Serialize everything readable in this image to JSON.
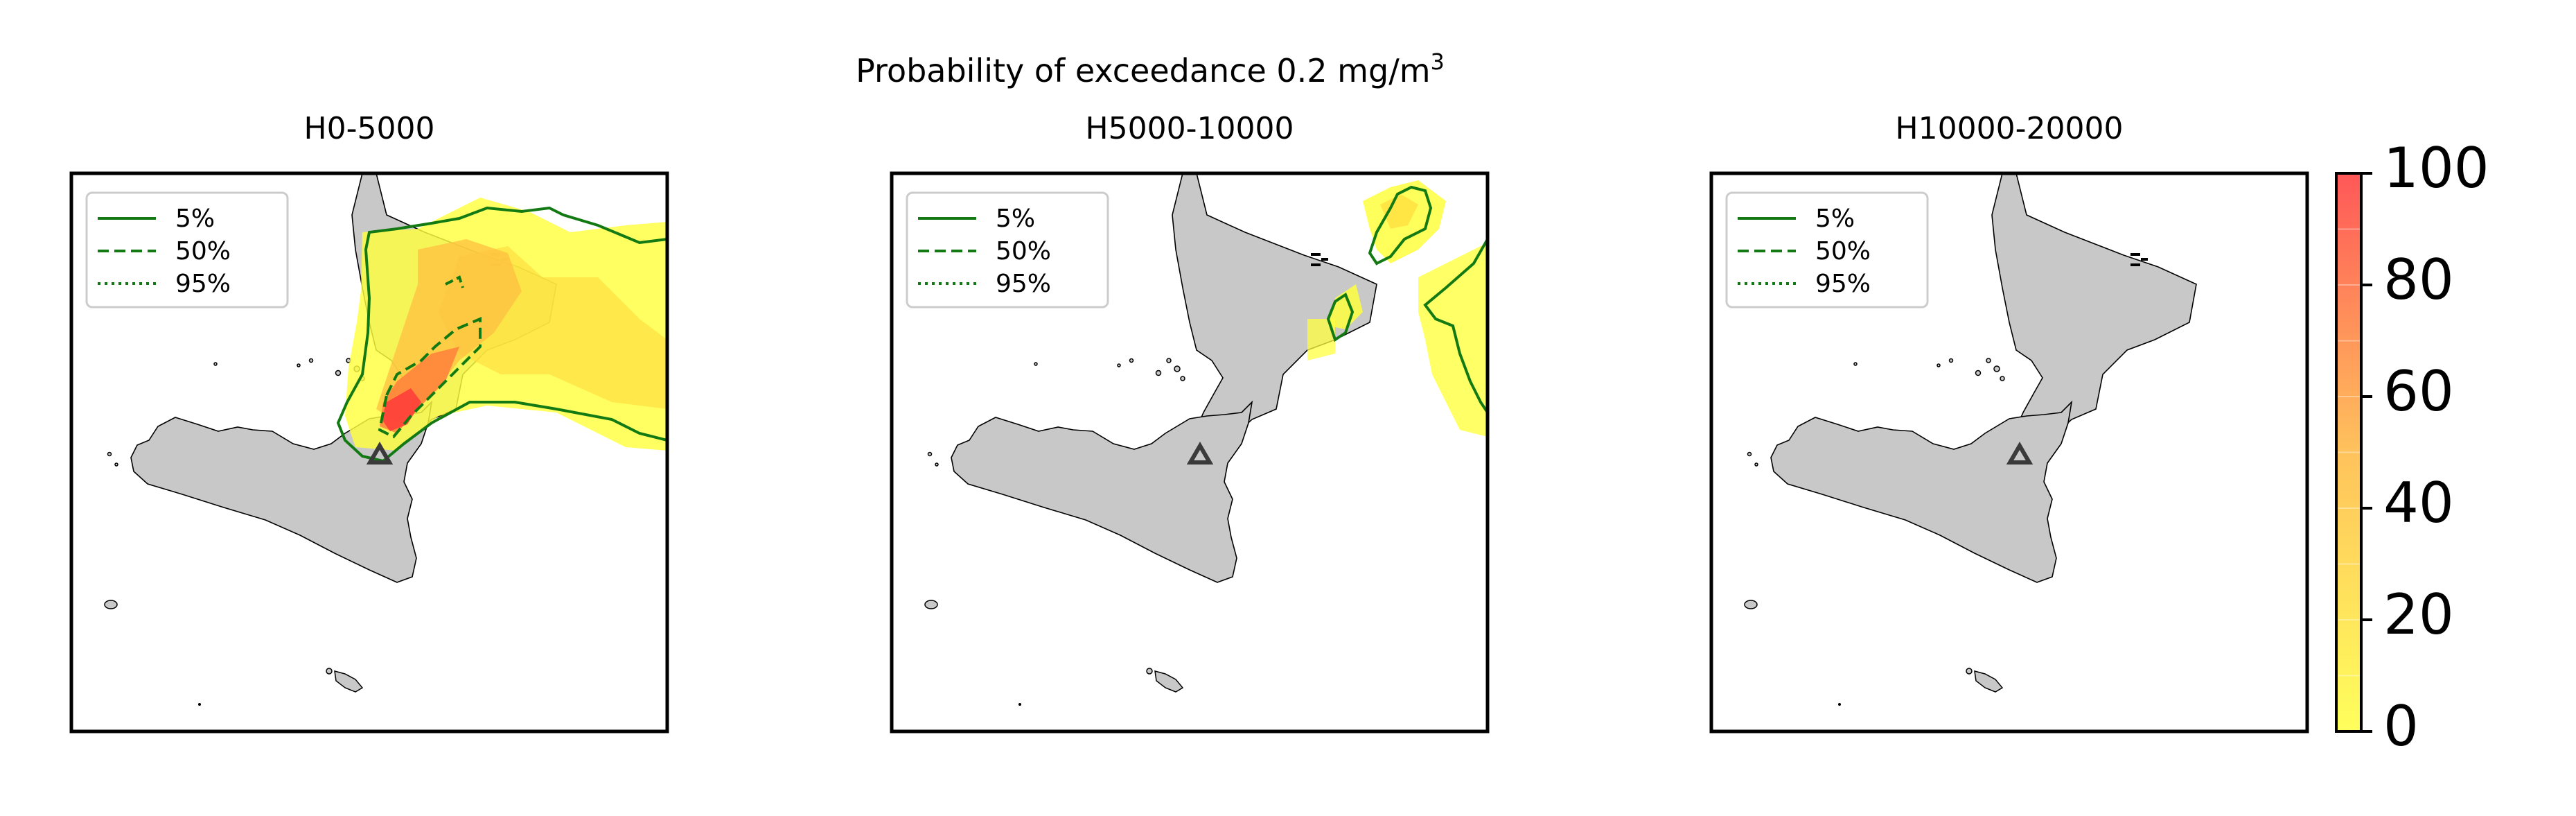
{
  "figure": {
    "suptitle_prefix": "Probability of exceedance 0.2 mg/m",
    "suptitle_sup": "3"
  },
  "colors": {
    "land": "#c8c8c8",
    "coast": "#000000",
    "contour": "#137a13",
    "volcano": "#3a3a3a",
    "colormap_low": "#ffff40",
    "colormap_high": "#ff3a3a"
  },
  "legend": {
    "entries": [
      {
        "label": "5%",
        "style": "solid"
      },
      {
        "label": "50%",
        "style": "dashed"
      },
      {
        "label": "95%",
        "style": "dotted"
      }
    ]
  },
  "panels": [
    {
      "title": "H0-5000"
    },
    {
      "title": "H5000-10000"
    },
    {
      "title": "H10000-20000"
    }
  ],
  "colorbar": {
    "min": 0,
    "max": 100,
    "ticks": [
      "0",
      "20",
      "40",
      "60",
      "80",
      "100"
    ]
  }
}
